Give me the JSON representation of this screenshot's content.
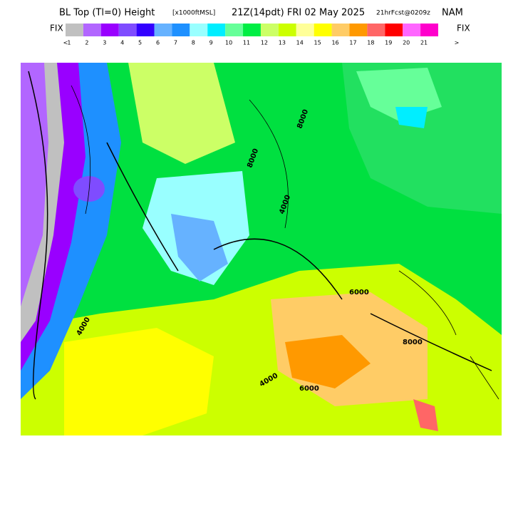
{
  "header": {
    "title": "BL Top (Tl=0) Height",
    "units": "[x1000ftMSL]",
    "valid": "21Z(14pdt) FRI 02 May 2025",
    "forecast": "21hrFcst@0209z",
    "model": "NAM"
  },
  "legend": {
    "left_label": "FIX",
    "right_label": "FIX",
    "low_marker": "<",
    "high_marker": ">",
    "colors": [
      "#c0c0c0",
      "#b266ff",
      "#9900ff",
      "#7f4cff",
      "#3300ff",
      "#66b2ff",
      "#1e90ff",
      "#99ffff",
      "#00eeff",
      "#66ff99",
      "#00ee44",
      "#ccff66",
      "#ccff00",
      "#ffff99",
      "#ffff00",
      "#ffcc66",
      "#ff9900",
      "#ff6666",
      "#ff0000",
      "#ff66ff",
      "#ff00cc"
    ],
    "labels": [
      "1",
      "2",
      "3",
      "4",
      "5",
      "6",
      "7",
      "8",
      "9",
      "10",
      "11",
      "12",
      "13",
      "14",
      "15",
      "16",
      "17",
      "18",
      "19",
      "20",
      "21"
    ]
  },
  "map": {
    "contour_labels": [
      "8000",
      "4000",
      "4000",
      "6000",
      "6000",
      "8000",
      "8000",
      "4000"
    ]
  }
}
